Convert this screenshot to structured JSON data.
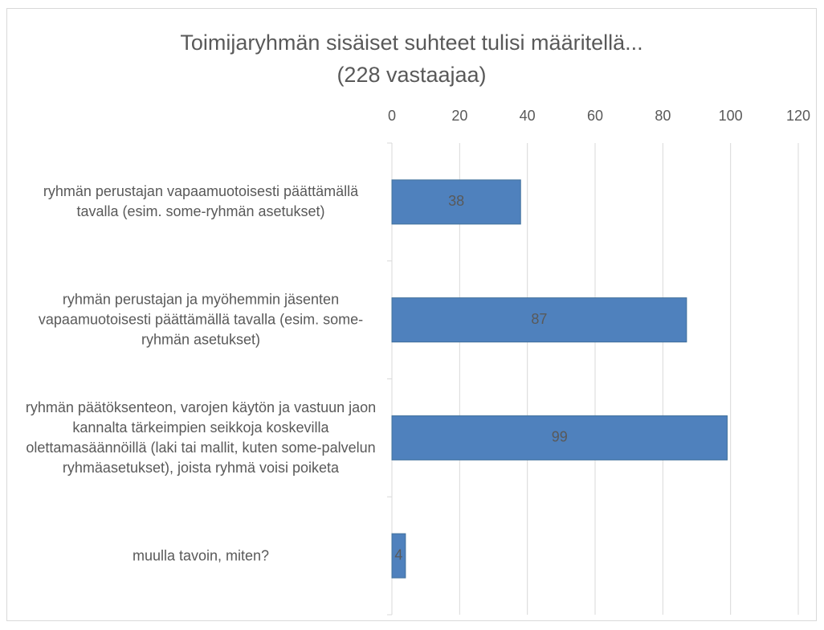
{
  "chart_data": {
    "type": "bar",
    "orientation": "horizontal",
    "title": "Toimijaryhmän sisäiset suhteet tulisi määritellä...",
    "subtitle": "(228 vastaajaa)",
    "categories": [
      "ryhmän perustajan vapaamuotoisesti päättämällä tavalla (esim. some-ryhmän asetukset)",
      "ryhmän perustajan ja myöhemmin jäsenten vapaamuotoisesti päättämällä tavalla (esim. some-ryhmän asetukset)",
      "ryhmän päätöksenteon, varojen käytön ja vastuun jaon kannalta tärkeimpien seikkoja koskevilla olettamasäännöillä (laki tai mallit, kuten some-palvelun ryhmäasetukset), joista ryhmä voisi poiketa",
      "muulla tavoin, miten?"
    ],
    "values": [
      38,
      87,
      99,
      4
    ],
    "color": "#4f81bd",
    "xlim": [
      0,
      120
    ],
    "xticks": [
      0,
      20,
      40,
      60,
      80,
      100,
      120
    ],
    "grid": true
  }
}
